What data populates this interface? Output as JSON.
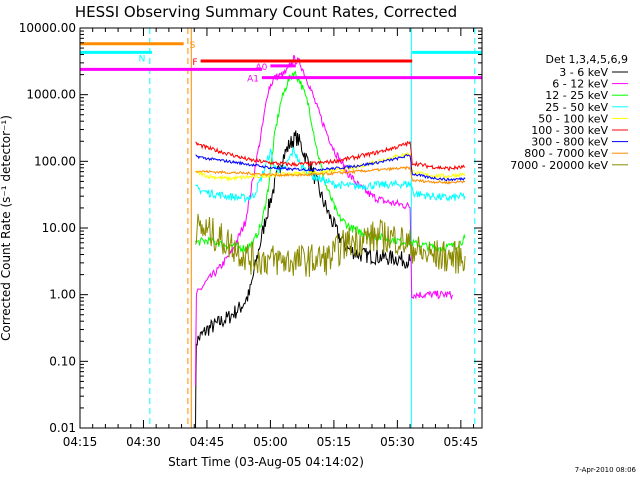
{
  "chart_data": {
    "type": "line",
    "title": "HESSI Observing Summary Count Rates, Corrected",
    "xlabel": "Start Time (03-Aug-05 04:14:02)",
    "ylabel": "Corrected Count Rate (s⁻¹ detector⁻¹)",
    "y_scale": "log",
    "ylim": [
      0.01,
      10000
    ],
    "xlim_minutes": [
      255,
      350
    ],
    "x_ticks": [
      {
        "value": 255,
        "label": "04:15"
      },
      {
        "value": 270,
        "label": "04:30"
      },
      {
        "value": 285,
        "label": "04:45"
      },
      {
        "value": 300,
        "label": "05:00"
      },
      {
        "value": 315,
        "label": "05:15"
      },
      {
        "value": 330,
        "label": "05:30"
      },
      {
        "value": 345,
        "label": "05:45"
      }
    ],
    "y_ticks": [
      {
        "value": 10000,
        "label": "10000.00"
      },
      {
        "value": 1000,
        "label": "1000.00"
      },
      {
        "value": 100,
        "label": "100.00"
      },
      {
        "value": 10,
        "label": "10.00"
      },
      {
        "value": 1,
        "label": "1.00"
      },
      {
        "value": 0.1,
        "label": "0.10"
      },
      {
        "value": 0.01,
        "label": "0.01"
      }
    ],
    "legend_title": "Det 1,3,4,5,6,9",
    "series": [
      {
        "name": "3 - 6 keV",
        "color": "#000000",
        "points": [
          [
            282.3,
            0.012
          ],
          [
            282.5,
            0.2
          ],
          [
            285,
            0.3
          ],
          [
            290,
            0.45
          ],
          [
            293,
            0.65
          ],
          [
            295,
            1
          ],
          [
            297,
            4
          ],
          [
            299,
            15
          ],
          [
            301,
            45
          ],
          [
            302.5,
            100
          ],
          [
            304.5,
            180
          ],
          [
            306,
            230
          ],
          [
            307,
            190
          ],
          [
            308,
            130
          ],
          [
            310,
            70
          ],
          [
            312,
            30
          ],
          [
            314,
            15
          ],
          [
            316,
            8
          ],
          [
            318,
            5
          ],
          [
            321,
            4
          ],
          [
            324,
            3.8
          ],
          [
            327,
            3.6
          ],
          [
            330,
            3.5
          ],
          [
            332,
            3.3
          ],
          [
            333,
            3.2
          ]
        ]
      },
      {
        "name": "6 - 12 keV",
        "color": "#ff00ff",
        "points": [
          [
            282.3,
            0.04
          ],
          [
            282.5,
            1
          ],
          [
            285,
            1.6
          ],
          [
            288,
            2.5
          ],
          [
            291,
            4.5
          ],
          [
            294,
            12
          ],
          [
            296,
            60
          ],
          [
            298,
            300
          ],
          [
            299.5,
            1200
          ],
          [
            301,
            1800
          ],
          [
            303,
            2000
          ],
          [
            304,
            2300
          ],
          [
            305.5,
            3400
          ],
          [
            307,
            3000
          ],
          [
            309,
            1500
          ],
          [
            311,
            650
          ],
          [
            313,
            300
          ],
          [
            315,
            150
          ],
          [
            318,
            70
          ],
          [
            321,
            42
          ],
          [
            324,
            30
          ],
          [
            327,
            25
          ],
          [
            330,
            23
          ],
          [
            333,
            21
          ],
          [
            333.4,
            1
          ],
          [
            343,
            1
          ]
        ]
      },
      {
        "name": "12 - 25 keV",
        "color": "#00ff00",
        "points": [
          [
            282.3,
            6
          ],
          [
            285,
            6.5
          ],
          [
            290,
            5.5
          ],
          [
            294,
            5
          ],
          [
            296,
            6
          ],
          [
            298,
            12
          ],
          [
            299.5,
            40
          ],
          [
            301,
            250
          ],
          [
            302.5,
            800
          ],
          [
            304,
            1500
          ],
          [
            305.5,
            2200
          ],
          [
            307,
            1600
          ],
          [
            309,
            700
          ],
          [
            311,
            150
          ],
          [
            313,
            45
          ],
          [
            316,
            15
          ],
          [
            319,
            10
          ],
          [
            323,
            8
          ],
          [
            327,
            7
          ],
          [
            330,
            6.5
          ],
          [
            333,
            6
          ],
          [
            336,
            5.5
          ],
          [
            340,
            5
          ],
          [
            344,
            5.5
          ],
          [
            346,
            7
          ]
        ]
      },
      {
        "name": "25 - 50 keV",
        "color": "#00ffff",
        "points": [
          [
            282.3,
            40
          ],
          [
            285,
            34
          ],
          [
            290,
            30
          ],
          [
            294,
            28
          ],
          [
            296,
            30
          ],
          [
            298,
            60
          ],
          [
            300,
            140
          ],
          [
            301,
            80
          ],
          [
            303,
            70
          ],
          [
            305.5,
            150
          ],
          [
            307,
            90
          ],
          [
            310,
            60
          ],
          [
            315,
            45
          ],
          [
            320,
            42
          ],
          [
            325,
            44
          ],
          [
            330,
            45
          ],
          [
            333,
            46
          ],
          [
            334,
            33
          ],
          [
            338,
            30
          ],
          [
            342,
            28
          ],
          [
            346,
            30
          ]
        ]
      },
      {
        "name": "50 - 100 keV",
        "color": "#ffff00",
        "points": [
          [
            282.3,
            70
          ],
          [
            285,
            60
          ],
          [
            290,
            55
          ],
          [
            295,
            58
          ],
          [
            300,
            62
          ],
          [
            305,
            65
          ],
          [
            310,
            68
          ],
          [
            315,
            72
          ],
          [
            320,
            80
          ],
          [
            325,
            100
          ],
          [
            330,
            120
          ],
          [
            333,
            130
          ],
          [
            333.5,
            70
          ],
          [
            337,
            62
          ],
          [
            342,
            60
          ],
          [
            346,
            65
          ]
        ]
      },
      {
        "name": "100 - 300 keV",
        "color": "#ff0000",
        "points": [
          [
            282.3,
            185
          ],
          [
            285,
            160
          ],
          [
            290,
            130
          ],
          [
            295,
            105
          ],
          [
            300,
            95
          ],
          [
            305,
            90
          ],
          [
            310,
            92
          ],
          [
            315,
            100
          ],
          [
            320,
            115
          ],
          [
            325,
            135
          ],
          [
            330,
            165
          ],
          [
            333,
            190
          ],
          [
            333.5,
            95
          ],
          [
            337,
            85
          ],
          [
            342,
            78
          ],
          [
            346,
            82
          ]
        ]
      },
      {
        "name": "300 - 800 keV",
        "color": "#0000ff",
        "points": [
          [
            282.3,
            120
          ],
          [
            285,
            110
          ],
          [
            290,
            100
          ],
          [
            295,
            90
          ],
          [
            300,
            80
          ],
          [
            305,
            76
          ],
          [
            310,
            75
          ],
          [
            315,
            78
          ],
          [
            320,
            85
          ],
          [
            325,
            95
          ],
          [
            330,
            110
          ],
          [
            333,
            125
          ],
          [
            333.5,
            65
          ],
          [
            337,
            58
          ],
          [
            342,
            53
          ],
          [
            346,
            55
          ]
        ]
      },
      {
        "name": "800 - 7000 keV",
        "color": "#ff8c00",
        "points": [
          [
            282.3,
            72
          ],
          [
            285,
            70
          ],
          [
            290,
            68
          ],
          [
            295,
            66
          ],
          [
            300,
            63
          ],
          [
            305,
            62
          ],
          [
            310,
            63
          ],
          [
            315,
            66
          ],
          [
            320,
            70
          ],
          [
            325,
            74
          ],
          [
            330,
            78
          ],
          [
            333,
            80
          ],
          [
            333.5,
            52
          ],
          [
            337,
            50
          ],
          [
            342,
            48
          ],
          [
            346,
            50
          ]
        ]
      },
      {
        "name": "7000 - 20000 keV",
        "color": "#8b8b00",
        "points": [
          [
            282.3,
            10
          ],
          [
            285,
            9
          ],
          [
            290,
            6
          ],
          [
            295,
            3.5
          ],
          [
            300,
            3.3
          ],
          [
            305,
            3.2
          ],
          [
            310,
            3.3
          ],
          [
            314,
            3.5
          ],
          [
            318,
            6
          ],
          [
            322,
            7
          ],
          [
            326,
            7.5
          ],
          [
            330,
            7
          ],
          [
            333,
            5.5
          ],
          [
            336,
            4
          ],
          [
            340,
            3.8
          ],
          [
            344,
            3.6
          ],
          [
            346,
            3.8
          ]
        ]
      }
    ],
    "state_bars": [
      {
        "label": "S",
        "color": "#ff8c00",
        "value": 5800,
        "x_start": 255,
        "x_end": 279.5
      },
      {
        "label": "N",
        "color": "#00ffff",
        "value": 4300,
        "x_start": 255,
        "x_end": 272,
        "label_at": 272
      },
      {
        "label": "N",
        "color": "#00ffff",
        "value": 4300,
        "x_start": 333.5,
        "x_end": 350
      },
      {
        "label": "F",
        "color": "#ff0000",
        "value": 3200,
        "x_start": 283.5,
        "x_end": 333.5
      },
      {
        "label": "A0",
        "color": "#ff00ff",
        "value": 2700,
        "x_start": 300,
        "x_end": 306
      },
      {
        "label": "A1",
        "color": "#ff00ff",
        "value": 1800,
        "x_start": 298,
        "x_end": 350
      }
    ],
    "pink_bar_left": {
      "color": "#ff00ff",
      "value": 2400,
      "x_start": 255,
      "x_end": 298
    },
    "vertical_lines": [
      {
        "x": 255,
        "color": "#00ffff",
        "dashed": true
      },
      {
        "x": 271.5,
        "color": "#00ffff",
        "dashed": true
      },
      {
        "x": 280.5,
        "color": "#ff8c00",
        "dashed": true
      },
      {
        "x": 281.3,
        "color": "#ff8c00",
        "dashed": false
      },
      {
        "x": 333.3,
        "color": "#00ffff",
        "dashed": false
      },
      {
        "x": 348.3,
        "color": "#00ffff",
        "dashed": true
      }
    ]
  },
  "footer_date": "7-Apr-2010 08:06"
}
